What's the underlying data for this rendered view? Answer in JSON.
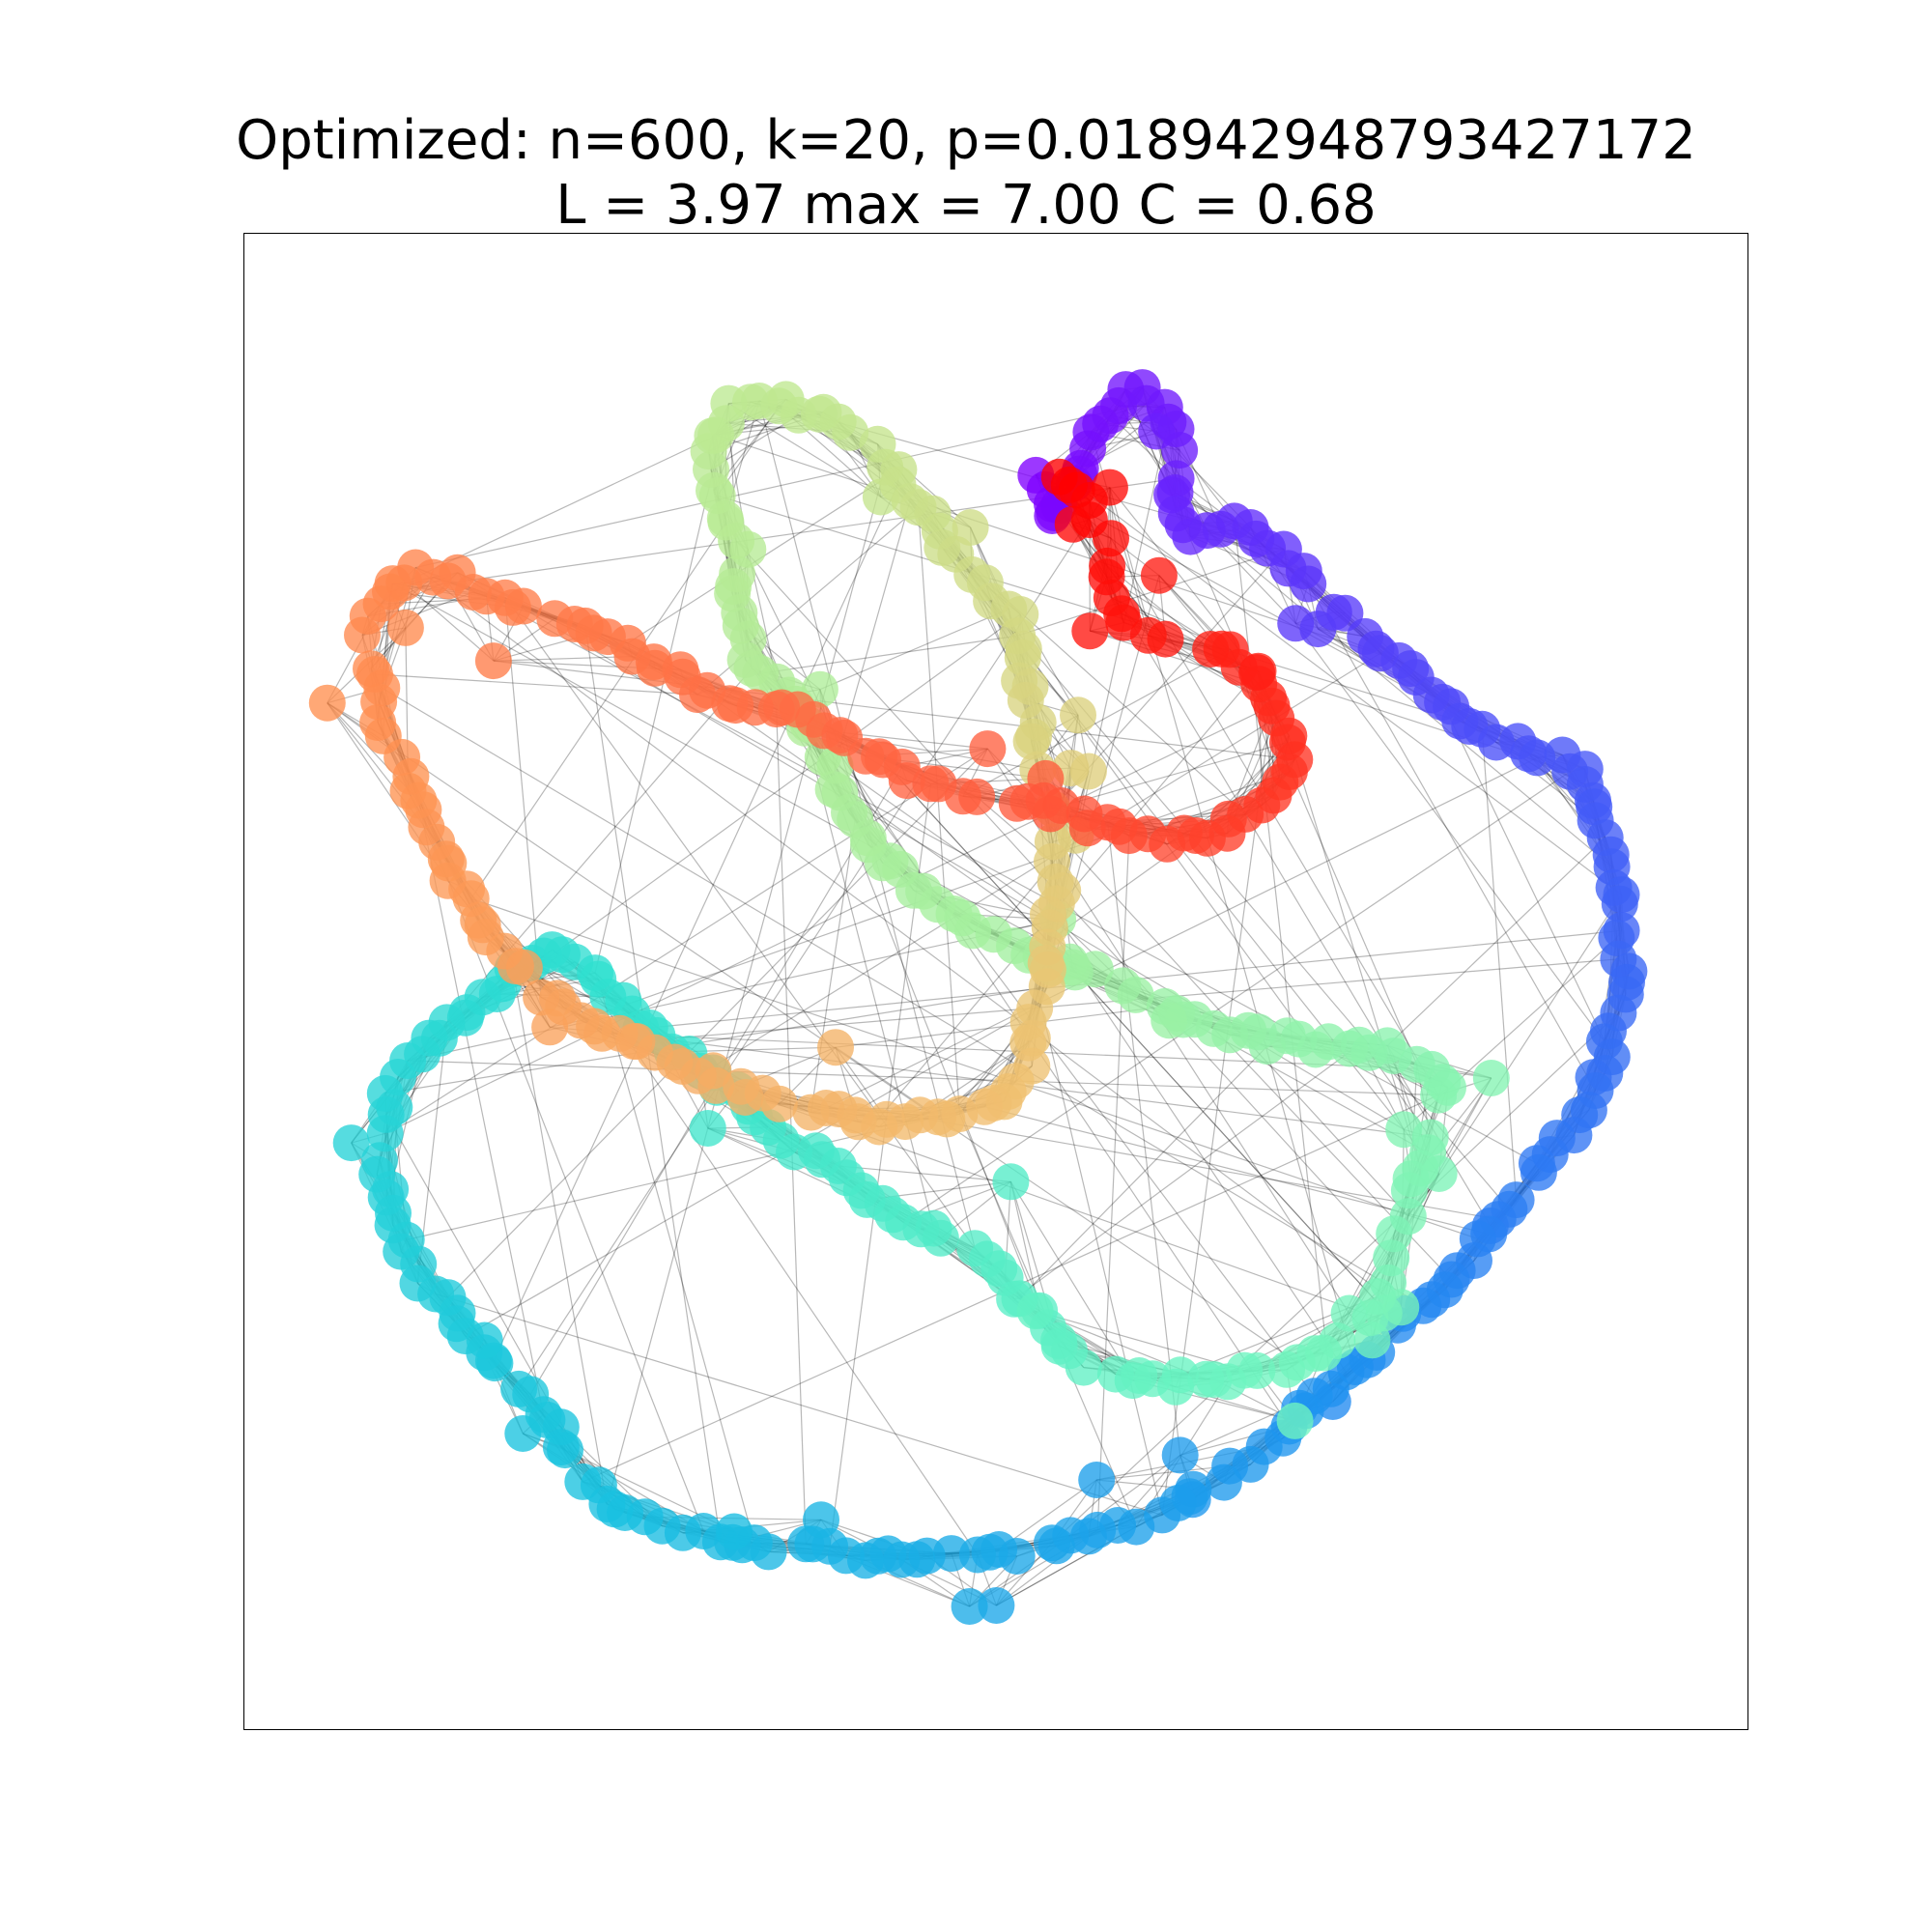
{
  "figure": {
    "title_line1": "Optimized: n=600, k=20, p=0.018942948793427172",
    "title_line2": "L = 3.97 max = 7.00 C = 0.68"
  },
  "graph": {
    "n": 600,
    "k": 20,
    "p": 0.018942948793427172,
    "L": 3.97,
    "max": 7.0,
    "C": 0.68,
    "colormap": "rainbow",
    "node_color_stops": [
      "#8000ff",
      "#4a50f8",
      "#1e90f0",
      "#18c0e0",
      "#30e0d0",
      "#6ef5c0",
      "#a0f0a0",
      "#c0e890",
      "#f0c070",
      "#ff9050",
      "#ff6040",
      "#ff0000"
    ],
    "edge_color": "#000000",
    "axes_frame": true,
    "axis_ticks": false
  }
}
